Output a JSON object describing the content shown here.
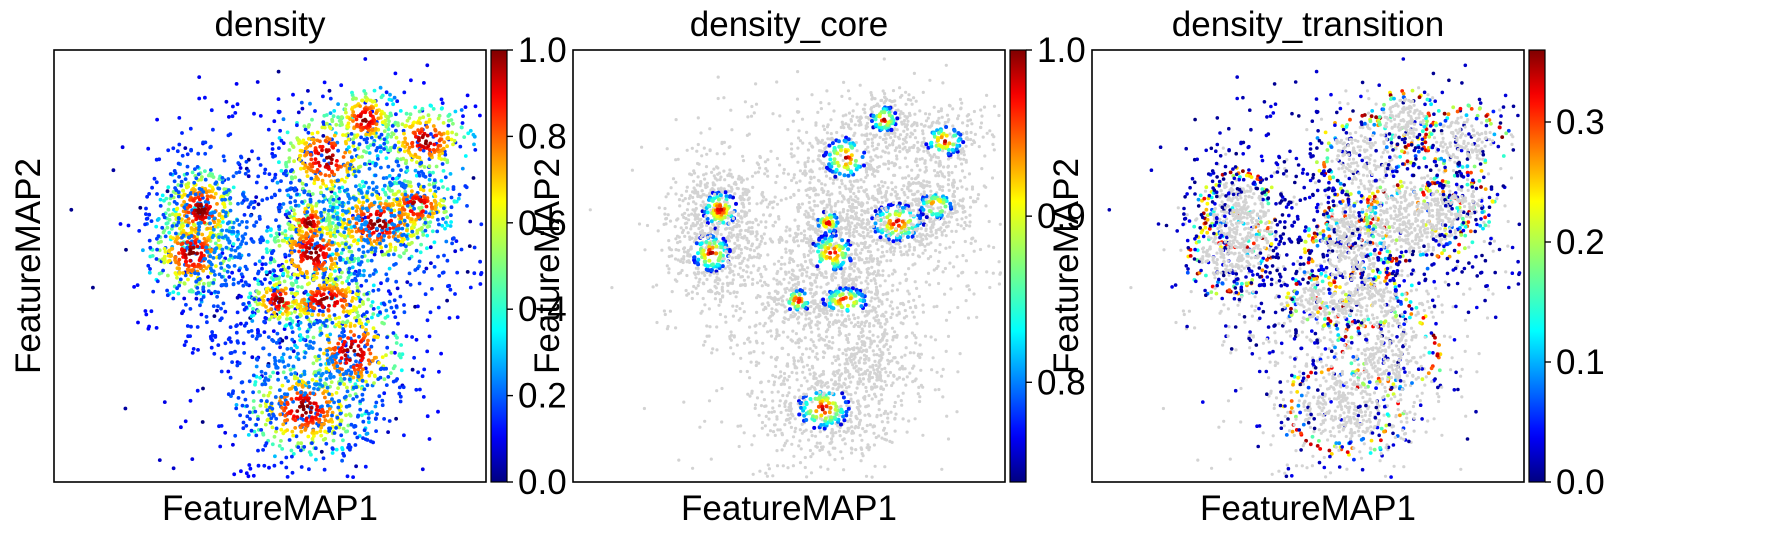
{
  "colormap": {
    "name": "jet",
    "stops": [
      "#000080",
      "#0000ff",
      "#00ffff",
      "#7fff7f",
      "#ffff00",
      "#ff0000",
      "#800000"
    ]
  },
  "background_point_color": "#d3d3d3",
  "chart_data": [
    {
      "type": "scatter",
      "title": "density",
      "xlabel": "FeatureMAP1",
      "ylabel": "FeatureMAP2",
      "color_range": [
        0.0,
        1.0
      ],
      "colorbar_ticks": [
        "0.0",
        "0.2",
        "0.4",
        "0.6",
        "0.8",
        "1.0"
      ],
      "colorbar_tick_values": [
        0.0,
        0.2,
        0.4,
        0.6,
        0.8,
        1.0
      ],
      "mode": "density",
      "grid": false
    },
    {
      "type": "scatter",
      "title": "density_core",
      "xlabel": "FeatureMAP1",
      "ylabel": "FeatureMAP2",
      "color_range": [
        0.74,
        1.0
      ],
      "colorbar_ticks": [
        "0.8",
        "0.9",
        "1.0"
      ],
      "colorbar_tick_values": [
        0.8,
        0.9,
        1.0
      ],
      "mode": "core",
      "grid": false
    },
    {
      "type": "scatter",
      "title": "density_transition",
      "xlabel": "FeatureMAP1",
      "ylabel": "FeatureMAP2",
      "color_range": [
        0.0,
        0.36
      ],
      "colorbar_ticks": [
        "0.0",
        "0.1",
        "0.2",
        "0.3"
      ],
      "colorbar_tick_values": [
        0.0,
        0.1,
        0.2,
        0.3
      ],
      "mode": "transition",
      "grid": false
    }
  ]
}
